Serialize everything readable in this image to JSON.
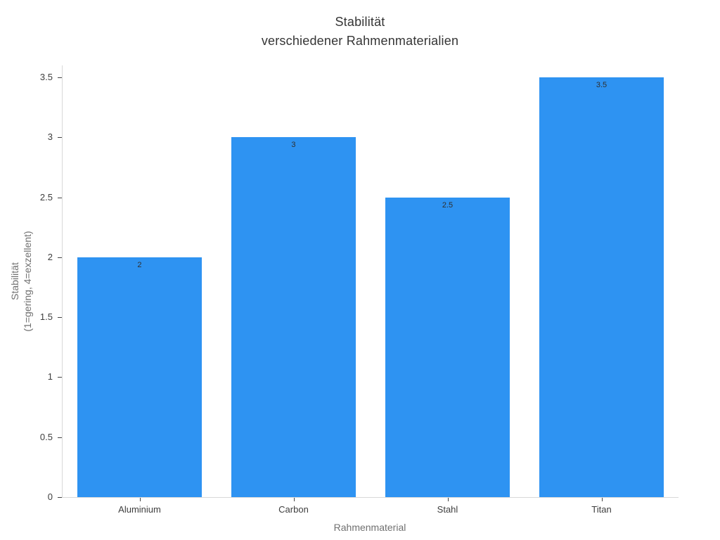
{
  "chart_data": {
    "type": "bar",
    "title_lines": [
      "Stabilität",
      "verschiedener Rahmenmaterialien"
    ],
    "categories": [
      "Aluminium",
      "Carbon",
      "Stahl",
      "Titan"
    ],
    "values": [
      2,
      3,
      2.5,
      3.5
    ],
    "bar_labels": [
      "2",
      "3",
      "2.5",
      "3.5"
    ],
    "bar_label_position": "inside-top",
    "xlabel": "Rahmenmaterial",
    "ylabel_lines": [
      "Stabilität",
      "(1=gering, 4=exzellent)"
    ],
    "yticks": [
      "0",
      "0.5",
      "1",
      "1.5",
      "2",
      "2.5",
      "3",
      "3.5"
    ],
    "ytick_values": [
      0,
      0.5,
      1,
      1.5,
      2,
      2.5,
      3,
      3.5
    ],
    "ylim": [
      0,
      3.6
    ],
    "bar_color": "#2e93f2",
    "bar_width_fraction": 0.81,
    "grid": false,
    "legend": "none",
    "background_color": "#ffffff",
    "spine_color": "#d9d9d9",
    "tick_color": "#444444"
  }
}
